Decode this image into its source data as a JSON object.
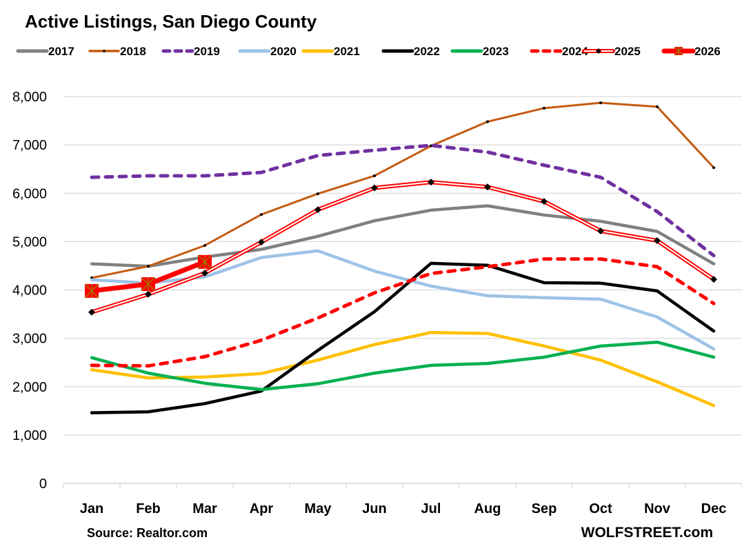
{
  "chart_data": {
    "type": "line",
    "title": "Active Listings, San Diego County",
    "xlabel": "",
    "ylabel": "",
    "categories": [
      "Jan",
      "Feb",
      "Mar",
      "Apr",
      "May",
      "Jun",
      "Jul",
      "Aug",
      "Sep",
      "Oct",
      "Nov",
      "Dec"
    ],
    "ylim": [
      0,
      8000
    ],
    "yticks": [
      0,
      1000,
      2000,
      3000,
      4000,
      5000,
      6000,
      7000,
      8000
    ],
    "ytick_labels": [
      "0",
      "1,000",
      "2,000",
      "3,000",
      "4,000",
      "5,000",
      "6,000",
      "7,000",
      "8,000"
    ],
    "grid": true,
    "legend_position": "top",
    "series": [
      {
        "name": "2017",
        "color": "#808080",
        "style": "solid",
        "values": [
          4540,
          4490,
          4680,
          4840,
          5110,
          5430,
          5650,
          5740,
          5550,
          5420,
          5210,
          4540
        ]
      },
      {
        "name": "2018",
        "color": "#C55A11",
        "style": "solid-dot-marker",
        "values": [
          4250,
          4490,
          4920,
          5560,
          5990,
          6360,
          6980,
          7480,
          7760,
          7870,
          7790,
          6530
        ]
      },
      {
        "name": "2019",
        "color": "#7030A0",
        "style": "dashed",
        "values": [
          6330,
          6360,
          6360,
          6430,
          6780,
          6890,
          6990,
          6850,
          6580,
          6330,
          5620,
          4710
        ]
      },
      {
        "name": "2020",
        "color": "#9DC3E6",
        "style": "solid",
        "values": [
          4210,
          4140,
          4270,
          4670,
          4810,
          4390,
          4080,
          3880,
          3840,
          3810,
          3440,
          2780
        ]
      },
      {
        "name": "2021",
        "color": "#FFC000",
        "style": "solid",
        "values": [
          2350,
          2180,
          2200,
          2270,
          2550,
          2870,
          3120,
          3100,
          2840,
          2550,
          2100,
          1610
        ]
      },
      {
        "name": "2022",
        "color": "#000000",
        "style": "solid",
        "values": [
          1460,
          1480,
          1650,
          1910,
          2750,
          3550,
          4550,
          4510,
          4150,
          4140,
          3980,
          3150
        ]
      },
      {
        "name": "2023",
        "color": "#00B050",
        "style": "solid",
        "values": [
          2600,
          2280,
          2070,
          1940,
          2060,
          2280,
          2440,
          2480,
          2610,
          2840,
          2920,
          2610
        ]
      },
      {
        "name": "2024",
        "color": "#FF0000",
        "style": "dashed",
        "values": [
          2440,
          2430,
          2620,
          2960,
          3420,
          3940,
          4340,
          4480,
          4640,
          4640,
          4480,
          3720
        ]
      },
      {
        "name": "2025",
        "color": "#FF0000",
        "style": "double-diamond-marker",
        "values": [
          3540,
          3910,
          4350,
          4990,
          5660,
          6110,
          6230,
          6130,
          5830,
          5220,
          5020,
          4220
        ]
      },
      {
        "name": "2026",
        "color": "#FF0000",
        "style": "thick-square-marker",
        "values": [
          3980,
          4120,
          4580
        ]
      }
    ],
    "annotations": [
      "Source: Realtor.com",
      "WOLFSTREET.com"
    ]
  },
  "footer": {
    "source": "Source: Realtor.com",
    "brand": "WOLFSTREET.com"
  }
}
